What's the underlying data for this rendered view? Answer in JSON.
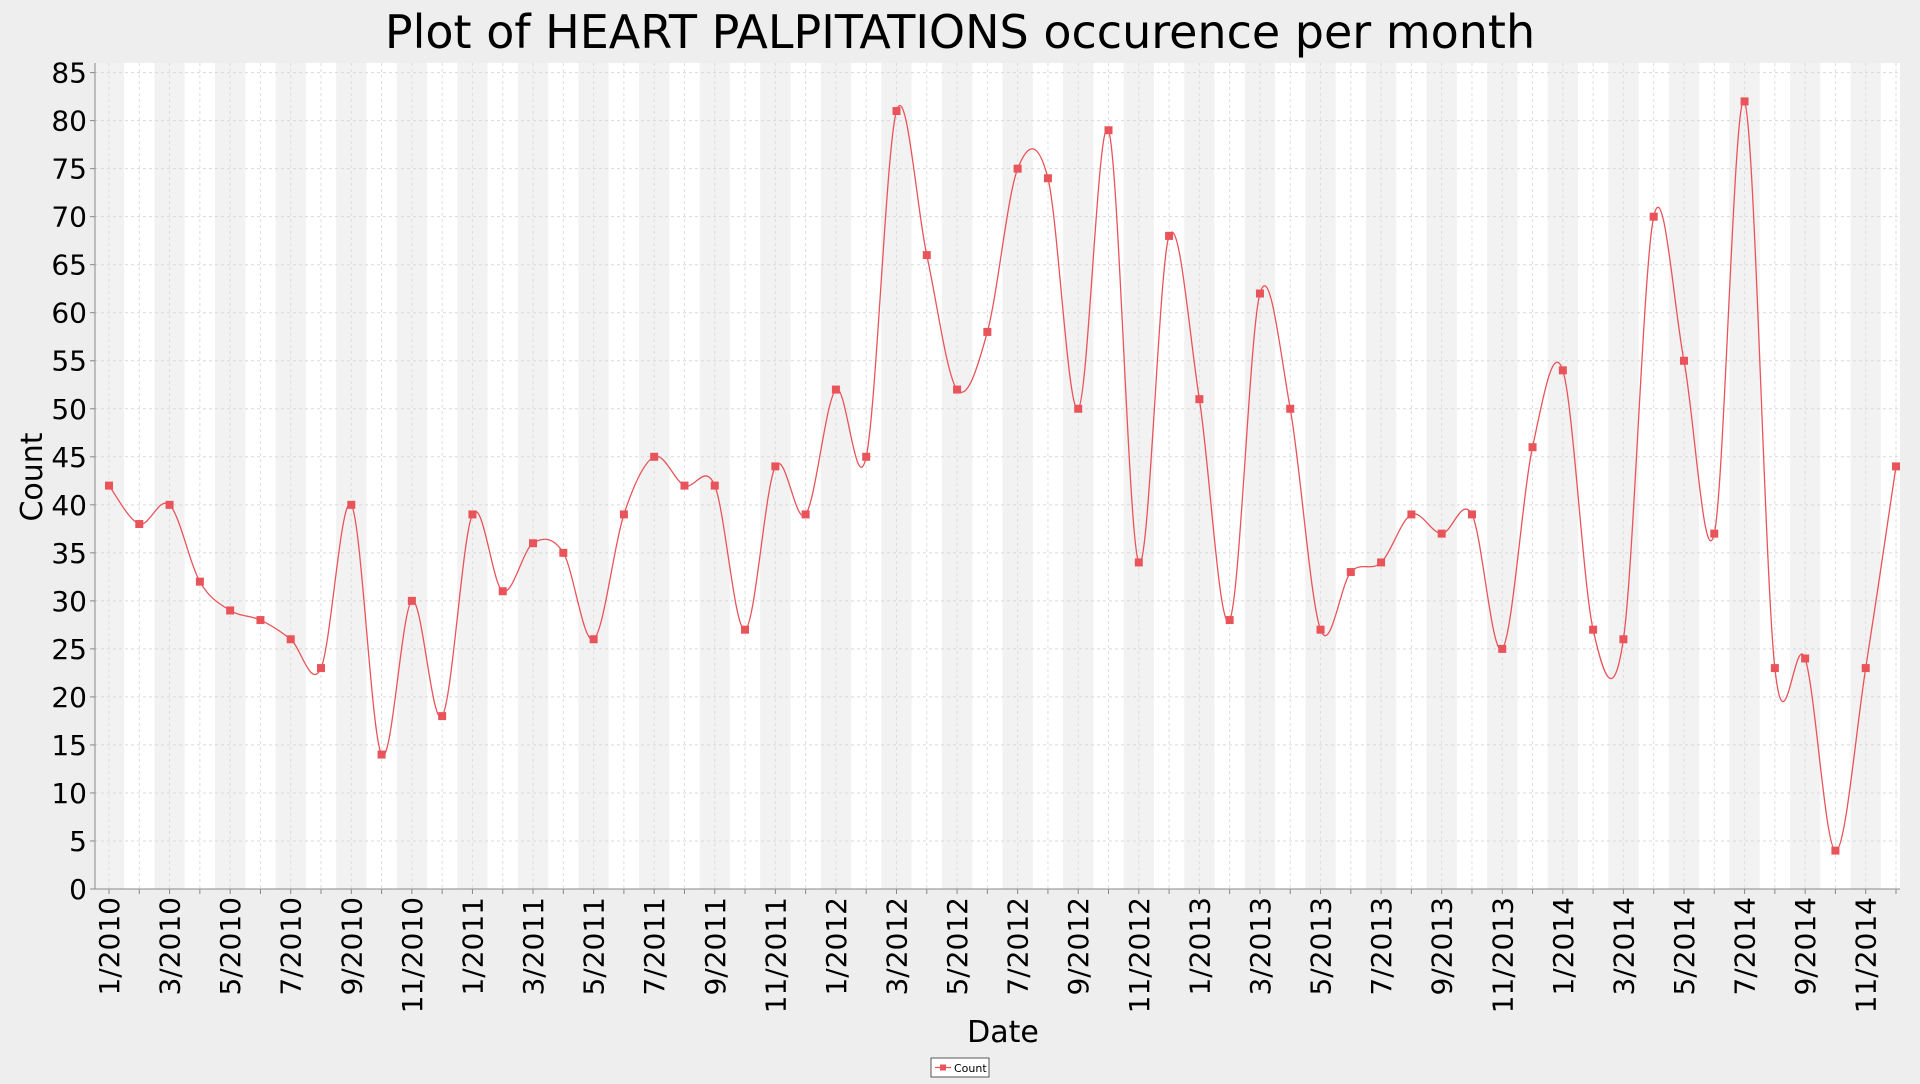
{
  "chart_data": {
    "type": "line",
    "title": "Plot of HEART PALPITATIONS occurence per month",
    "xlabel": "Date",
    "ylabel": "Count",
    "ylim": [
      0,
      86
    ],
    "yticks": [
      0,
      5,
      10,
      15,
      20,
      25,
      30,
      35,
      40,
      45,
      50,
      55,
      60,
      65,
      70,
      75,
      80,
      85
    ],
    "grid": true,
    "legend_position": "bottom-center",
    "x": [
      "1/2010",
      "2/2010",
      "3/2010",
      "4/2010",
      "5/2010",
      "6/2010",
      "7/2010",
      "8/2010",
      "9/2010",
      "10/2010",
      "11/2010",
      "12/2010",
      "1/2011",
      "2/2011",
      "3/2011",
      "4/2011",
      "5/2011",
      "6/2011",
      "7/2011",
      "8/2011",
      "9/2011",
      "10/2011",
      "11/2011",
      "12/2011",
      "1/2012",
      "2/2012",
      "3/2012",
      "4/2012",
      "5/2012",
      "6/2012",
      "7/2012",
      "8/2012",
      "9/2012",
      "10/2012",
      "11/2012",
      "12/2012",
      "1/2013",
      "2/2013",
      "3/2013",
      "4/2013",
      "5/2013",
      "6/2013",
      "7/2013",
      "8/2013",
      "9/2013",
      "10/2013",
      "11/2013",
      "12/2013",
      "1/2014",
      "2/2014",
      "3/2014",
      "4/2014",
      "5/2014",
      "6/2014",
      "7/2014",
      "8/2014",
      "9/2014",
      "10/2014",
      "11/2014",
      "12/2014"
    ],
    "x_tick_labels": [
      "1/2010",
      "3/2010",
      "5/2010",
      "7/2010",
      "9/2010",
      "11/2010",
      "1/2011",
      "3/2011",
      "5/2011",
      "7/2011",
      "9/2011",
      "11/2011",
      "1/2012",
      "3/2012",
      "5/2012",
      "7/2012",
      "9/2012",
      "11/2012",
      "1/2013",
      "3/2013",
      "5/2013",
      "7/2013",
      "9/2013",
      "11/2013",
      "1/2014",
      "3/2014",
      "5/2014",
      "7/2014",
      "9/2014",
      "11/2014"
    ],
    "series": [
      {
        "name": "Count",
        "color": "#e8545a",
        "values": [
          42,
          38,
          40,
          32,
          29,
          28,
          26,
          23,
          40,
          14,
          30,
          18,
          39,
          31,
          36,
          35,
          26,
          39,
          45,
          42,
          42,
          27,
          44,
          39,
          52,
          45,
          81,
          66,
          52,
          58,
          75,
          74,
          50,
          79,
          34,
          68,
          51,
          28,
          62,
          50,
          27,
          33,
          34,
          39,
          37,
          39,
          25,
          46,
          54,
          27,
          26,
          70,
          55,
          37,
          82,
          23,
          24,
          4,
          23,
          44
        ]
      }
    ]
  }
}
